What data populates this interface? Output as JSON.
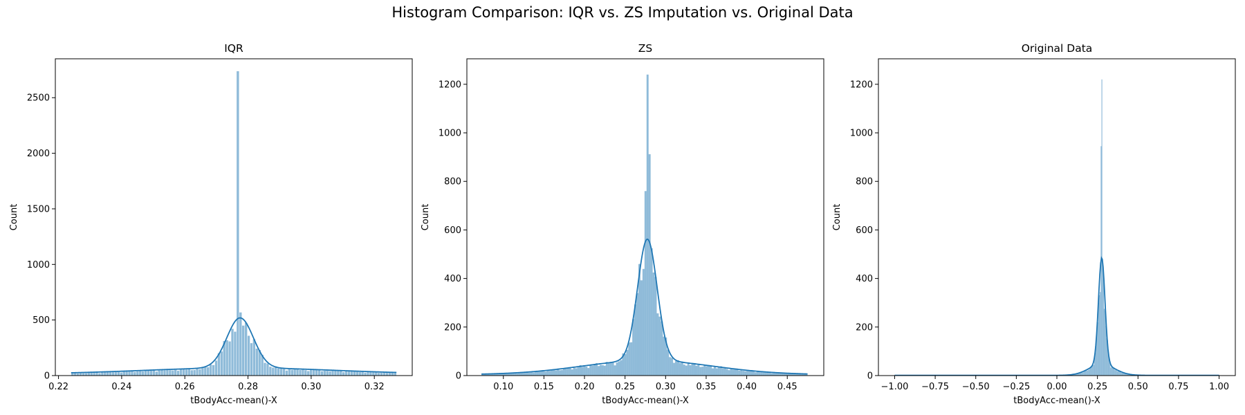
{
  "figure": {
    "title": "Histogram Comparison: IQR vs. ZS Imputation vs. Original Data"
  },
  "colors": {
    "bar_fill": "#1f77b4",
    "bar_opacity": 0.5,
    "kde_line": "#1f77b4"
  },
  "chart_data": [
    {
      "type": "histogram",
      "title": "IQR",
      "xlabel": "tBodyAcc-mean()-X",
      "ylabel": "Count",
      "xlim": [
        0.219,
        0.332
      ],
      "ylim": [
        0,
        2850
      ],
      "xticks": [
        0.22,
        0.24,
        0.26,
        0.28,
        0.3,
        0.32
      ],
      "xtick_labels": [
        "0.22",
        "0.24",
        "0.26",
        "0.28",
        "0.30",
        "0.32"
      ],
      "yticks": [
        0,
        500,
        1000,
        1500,
        2000,
        2500
      ],
      "ytick_labels": [
        "0",
        "500",
        "1000",
        "1500",
        "2000",
        "2500"
      ],
      "bin_range": [
        0.224,
        0.327
      ],
      "bin_count": 120,
      "spikes": [
        {
          "x": 0.2765,
          "count": 2740
        }
      ],
      "kde": {
        "peak_x": 0.2775,
        "peak": 450,
        "width": 0.0042,
        "tail": 55,
        "tail_width": 0.03,
        "base": 14
      },
      "grid": false,
      "legend": "none"
    },
    {
      "type": "histogram",
      "title": "ZS",
      "xlabel": "tBodyAcc-mean()-X",
      "ylabel": "Count",
      "xlim": [
        0.055,
        0.495
      ],
      "ylim": [
        0,
        1305
      ],
      "xticks": [
        0.1,
        0.15,
        0.2,
        0.25,
        0.3,
        0.35,
        0.4,
        0.45
      ],
      "xtick_labels": [
        "0.10",
        "0.15",
        "0.20",
        "0.25",
        "0.30",
        "0.35",
        "0.40",
        "0.45"
      ],
      "yticks": [
        0,
        200,
        400,
        600,
        800,
        1000,
        1200
      ],
      "ytick_labels": [
        "0",
        "200",
        "400",
        "600",
        "800",
        "1000",
        "1200"
      ],
      "bin_range": [
        0.073,
        0.475
      ],
      "bin_count": 160,
      "spikes": [
        {
          "x": 0.2773,
          "count": 1240
        },
        {
          "x": 0.2798,
          "count": 912
        },
        {
          "x": 0.2748,
          "count": 760
        }
      ],
      "kde": {
        "peak_x": 0.2775,
        "peak": 500,
        "width": 0.012,
        "tail": 58,
        "tail_width": 0.08,
        "base": 4
      },
      "grid": false,
      "legend": "none"
    },
    {
      "type": "histogram",
      "title": "Original Data",
      "xlabel": "tBodyAcc-mean()-X",
      "ylabel": "Count",
      "xlim": [
        -1.1,
        1.1
      ],
      "ylim": [
        0,
        1305
      ],
      "xticks": [
        -1.0,
        -0.75,
        -0.5,
        -0.25,
        0.0,
        0.25,
        0.5,
        0.75,
        1.0
      ],
      "xtick_labels": [
        "−1.00",
        "−0.75",
        "−0.50",
        "−0.25",
        "0.00",
        "0.25",
        "0.50",
        "0.75",
        "1.00"
      ],
      "yticks": [
        0,
        200,
        400,
        600,
        800,
        1000,
        1200
      ],
      "ytick_labels": [
        "0",
        "200",
        "400",
        "600",
        "800",
        "1000",
        "1200"
      ],
      "bin_range": [
        -1.0,
        1.0
      ],
      "bin_count": 400,
      "spikes": [
        {
          "x": 0.2765,
          "count": 1220
        },
        {
          "x": 0.2715,
          "count": 945
        }
      ],
      "kde": {
        "peak_x": 0.2765,
        "peak": 440,
        "width": 0.02,
        "tail": 45,
        "tail_width": 0.08,
        "base": 1
      },
      "grid": false,
      "legend": "none"
    }
  ]
}
